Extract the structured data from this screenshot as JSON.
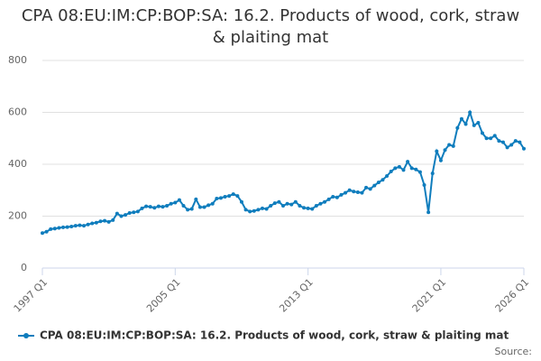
{
  "chart_data": {
    "type": "line",
    "title": "CPA 08:EU:IM:CP:BOP:SA: 16.2. Products of wood, cork, straw & plaiting mat",
    "categories": [
      "1997 Q1",
      null,
      null,
      null,
      null,
      null,
      null,
      null,
      null,
      null,
      null,
      null,
      null,
      null,
      null,
      null,
      null,
      null,
      null,
      null,
      null,
      null,
      null,
      null,
      null,
      null,
      null,
      null,
      null,
      null,
      null,
      null,
      "2005 Q1",
      null,
      null,
      null,
      null,
      null,
      null,
      null,
      null,
      null,
      null,
      null,
      null,
      null,
      null,
      null,
      null,
      null,
      null,
      null,
      null,
      null,
      null,
      null,
      null,
      null,
      null,
      null,
      null,
      null,
      null,
      null,
      "2013 Q1",
      null,
      null,
      null,
      null,
      null,
      null,
      null,
      null,
      null,
      null,
      null,
      null,
      null,
      null,
      null,
      null,
      null,
      null,
      null,
      null,
      null,
      null,
      null,
      null,
      null,
      null,
      null,
      null,
      null,
      null,
      null,
      "2021 Q1",
      null,
      null,
      null,
      null,
      null,
      null,
      null,
      null,
      null,
      null,
      null,
      null,
      null,
      null,
      null,
      null,
      null,
      null,
      null,
      "2026 Q1"
    ],
    "series": [
      {
        "name": "CPA 08:EU:IM:CP:BOP:SA: 16.2. Products of wood, cork, straw & plaiting mat",
        "color": "#0f7dbd",
        "values": [
          135,
          140,
          150,
          152,
          155,
          157,
          158,
          160,
          163,
          165,
          163,
          168,
          172,
          175,
          180,
          182,
          178,
          185,
          210,
          200,
          205,
          212,
          215,
          218,
          230,
          238,
          236,
          232,
          238,
          236,
          240,
          248,
          252,
          262,
          240,
          225,
          228,
          265,
          235,
          235,
          242,
          248,
          268,
          270,
          275,
          278,
          285,
          278,
          255,
          225,
          218,
          220,
          225,
          230,
          228,
          240,
          250,
          255,
          240,
          248,
          245,
          255,
          240,
          232,
          230,
          228,
          240,
          248,
          255,
          265,
          275,
          272,
          282,
          290,
          300,
          295,
          292,
          290,
          310,
          305,
          318,
          330,
          340,
          355,
          372,
          385,
          390,
          378,
          410,
          385,
          380,
          370,
          320,
          215,
          365,
          450,
          415,
          455,
          475,
          470,
          540,
          575,
          555,
          600,
          550,
          560,
          520,
          500,
          500,
          510,
          490,
          485,
          465,
          475,
          490,
          485,
          460
        ]
      }
    ],
    "ylim": [
      0,
      800
    ],
    "yticks": [
      0,
      200,
      400,
      600,
      800
    ],
    "grid": true,
    "source": "Source:"
  }
}
